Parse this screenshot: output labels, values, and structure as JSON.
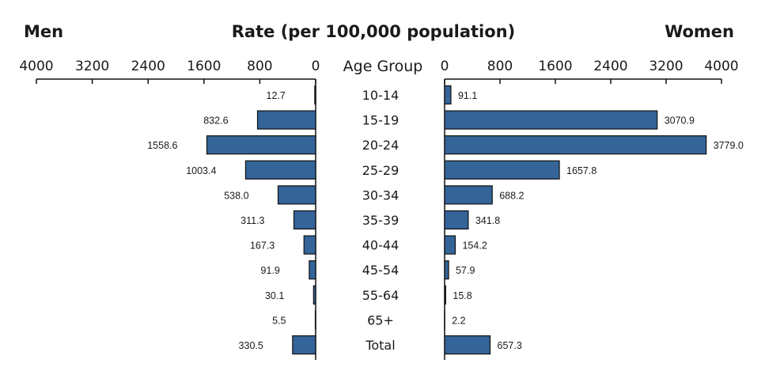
{
  "chart_data": {
    "type": "bar",
    "layout": "back-to-back horizontal",
    "title": "Rate (per 100,000 population)",
    "left_label": "Men",
    "right_label": "Women",
    "category_label": "Age Group",
    "categories": [
      "10-14",
      "15-19",
      "20-24",
      "25-29",
      "30-34",
      "35-39",
      "40-44",
      "45-54",
      "55-64",
      "65+",
      "Total"
    ],
    "xlim": [
      0,
      4000
    ],
    "ticks": [
      0,
      800,
      1600,
      2400,
      3200,
      4000
    ],
    "bar_color": "#346498",
    "series": [
      {
        "name": "Men",
        "values": [
          12.7,
          832.6,
          1558.6,
          1003.4,
          538.0,
          311.3,
          167.3,
          91.9,
          30.1,
          5.5,
          330.5
        ],
        "labels": [
          "12.7",
          "832.6",
          "1558.6",
          "1003.4",
          "538.0",
          "311.3",
          "167.3",
          "91.9",
          "30.1",
          "5.5",
          "330.5"
        ]
      },
      {
        "name": "Women",
        "values": [
          91.1,
          3070.9,
          3779.0,
          1657.8,
          688.2,
          341.8,
          154.2,
          57.9,
          15.8,
          2.2,
          657.3
        ],
        "labels": [
          "91.1",
          "3070.9",
          "3779.0",
          "1657.8",
          "688.2",
          "341.8",
          "154.2",
          "57.9",
          "15.8",
          "2.2",
          "657.3"
        ]
      }
    ]
  }
}
